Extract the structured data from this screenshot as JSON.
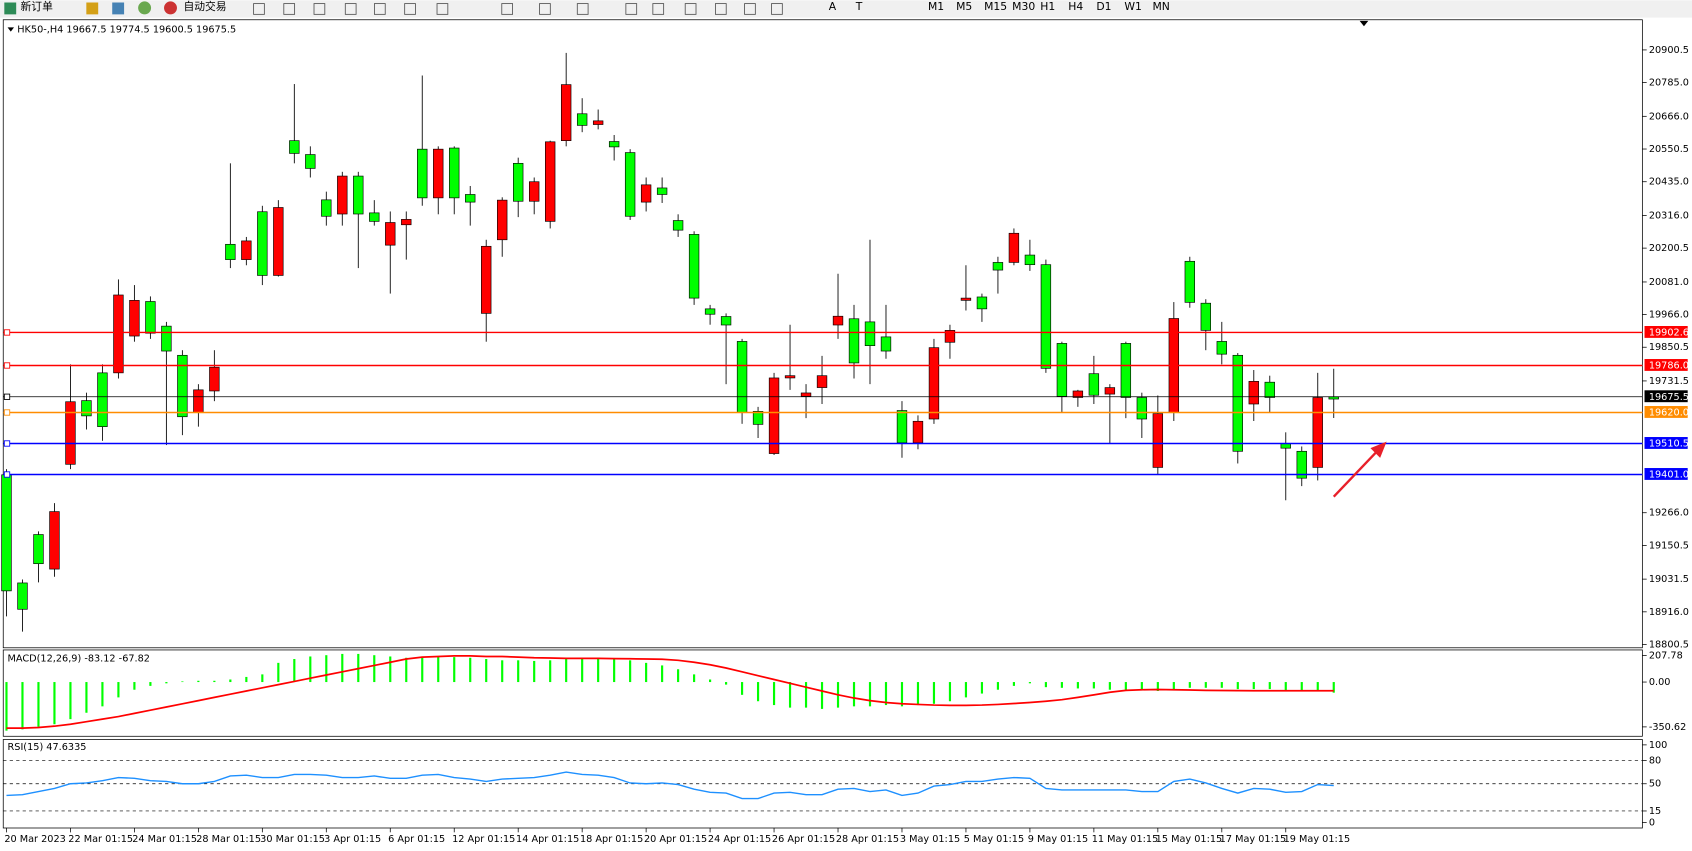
{
  "toolbar": {
    "buttons": [
      "新订单",
      "自动交易"
    ],
    "timeframes": [
      "M1",
      "M5",
      "M15",
      "M30",
      "H1",
      "H4",
      "D1",
      "W1",
      "MN"
    ],
    "tools": [
      "A",
      "T"
    ]
  },
  "chart_data": [
    {
      "type": "candlestick",
      "title": "HK50-,H4  19667.5 19774.5 19600.5 19675.5",
      "categories": [
        "20 Mar 2023",
        null,
        null,
        null,
        "22 Mar 01:15",
        null,
        null,
        null,
        "24 Mar 01:15",
        null,
        null,
        null,
        "28 Mar 01:15",
        null,
        null,
        null,
        "30 Mar 01:15",
        null,
        null,
        null,
        "3 Apr 01:15",
        null,
        null,
        null,
        "6 Apr 01:15",
        null,
        null,
        null,
        "12 Apr 01:15",
        null,
        null,
        null,
        "14 Apr 01:15",
        null,
        null,
        null,
        "18 Apr 01:15",
        null,
        null,
        null,
        "20 Apr 01:15",
        null,
        null,
        null,
        "24 Apr 01:15",
        null,
        null,
        null,
        "26 Apr 01:15",
        null,
        null,
        null,
        "28 Apr 01:15",
        null,
        null,
        null,
        "3 May 01:15",
        null,
        null,
        null,
        "5 May 01:15",
        null,
        null,
        null,
        "9 May 01:15",
        null,
        null,
        null,
        "11 May 01:15",
        null,
        null,
        null,
        "15 May 01:15",
        null,
        null,
        null,
        "17 May 01:15",
        null,
        null,
        null,
        "19 May 01:15",
        null,
        null,
        null
      ],
      "open": [
        18990,
        18925,
        19086,
        19270,
        19658,
        19608,
        19570,
        20035,
        20016,
        19900,
        19837,
        19605,
        19700,
        19780,
        20160,
        20226,
        20104,
        20344,
        20535,
        20482,
        20313,
        20455,
        20321,
        20295,
        20291,
        20302,
        20378,
        20550,
        20378,
        20363,
        20207,
        20370,
        20366,
        20435,
        20576,
        20778,
        20634,
        20650,
        20558,
        20313,
        20424,
        20390,
        20264,
        20024,
        19967,
        19929,
        19620,
        19578,
        19742,
        19750,
        19689,
        19750,
        19960,
        19795,
        19856,
        19837,
        19513,
        19589,
        19849,
        19910,
        20024,
        19986,
        20123,
        20253,
        20142,
        19776,
        19677,
        19696,
        19681,
        19708,
        19673,
        19597,
        19616,
        19952,
        20009,
        19910,
        19826,
        19483,
        19730,
        19673,
        19494,
        19388,
        19673,
        19667.5
      ],
      "high": [
        19420,
        19030,
        19200,
        19300,
        19790,
        19690,
        19790,
        20090,
        20070,
        20030,
        19940,
        19840,
        19720,
        19840,
        20500,
        20240,
        20350,
        20370,
        20780,
        20560,
        20400,
        20470,
        20470,
        20370,
        20330,
        20330,
        20810,
        20560,
        20560,
        20420,
        20230,
        20380,
        20520,
        20450,
        20580,
        20890,
        20730,
        20690,
        20600,
        20550,
        20450,
        20450,
        20320,
        20260,
        20000,
        19970,
        19880,
        19640,
        19760,
        19930,
        19720,
        19820,
        20110,
        20000,
        20230,
        20000,
        19660,
        19610,
        19880,
        19930,
        20140,
        20040,
        20170,
        20270,
        20230,
        20160,
        19870,
        19700,
        19820,
        19720,
        19870,
        19690,
        19680,
        20010,
        20170,
        20020,
        19940,
        19830,
        19770,
        19750,
        19550,
        19500,
        19760,
        19774.5
      ],
      "low": [
        18900,
        18846,
        19020,
        19040,
        19420,
        19560,
        19520,
        19740,
        19870,
        19880,
        19505,
        19540,
        19570,
        19660,
        20130,
        20140,
        20070,
        20100,
        20500,
        20450,
        20280,
        20280,
        20130,
        20280,
        20040,
        20160,
        20350,
        20320,
        20320,
        20280,
        19870,
        20170,
        20310,
        20320,
        20270,
        20560,
        20610,
        20620,
        20510,
        20300,
        20330,
        20360,
        20240,
        20000,
        19930,
        19720,
        19580,
        19530,
        19470,
        19700,
        19600,
        19650,
        19880,
        19740,
        19720,
        19810,
        19460,
        19490,
        19580,
        19810,
        19980,
        19940,
        20040,
        20140,
        20120,
        19760,
        19620,
        19640,
        19650,
        19510,
        19600,
        19530,
        19400,
        19590,
        19990,
        19840,
        19790,
        19440,
        19590,
        19620,
        19310,
        19360,
        19380,
        19600.5
      ],
      "close": [
        19400,
        19018,
        19189,
        19067,
        19437,
        19662,
        19760,
        19760,
        19890,
        20012,
        19925,
        19822,
        19620,
        19696,
        20214,
        20160,
        20329,
        20104,
        20580,
        20531,
        20371,
        20321,
        20455,
        20325,
        20211,
        20283,
        20550,
        20378,
        20554,
        20390,
        19970,
        20230,
        20500,
        20366,
        20295,
        20580,
        20675,
        20637,
        20577,
        20538,
        20363,
        20413,
        20298,
        20249,
        19986,
        19959,
        19871,
        19624,
        19475,
        19742,
        19677,
        19708,
        19929,
        19951,
        19940,
        19887,
        19627,
        19513,
        19597,
        19868,
        20016,
        20028,
        20150,
        20150,
        20176,
        20142,
        19864,
        19673,
        19757,
        19685,
        19864,
        19673,
        19426,
        19620,
        20154,
        20006,
        19871,
        19822,
        19650,
        19727,
        19510,
        19483,
        19426,
        19675.5
      ],
      "up_color": "#00ff00",
      "down_color": "#ff0000",
      "ylim": [
        18789,
        21007
      ],
      "yticks": [
        20900.5,
        {
          "value": 20785,
          "label": "20785.0"
        },
        {
          "value": 20666,
          "label": "20666.0"
        },
        20550.5,
        {
          "value": 20435,
          "label": "20435.0"
        },
        {
          "value": 20316,
          "label": "20316.0"
        },
        20200.5,
        {
          "value": 20081,
          "label": "20081.0"
        },
        {
          "value": 19966,
          "label": "19966.0"
        },
        19850.5,
        19731.5,
        {
          "value": 19266,
          "label": "19266.0"
        },
        19150.5,
        19031.5,
        {
          "value": 18916,
          "label": "18916.0"
        },
        18800.5
      ],
      "hlines": [
        {
          "value": 19902.6,
          "color": "#ff0000"
        },
        {
          "value": 19786,
          "label": "19786.0",
          "color": "#ff0000"
        },
        {
          "value": 19675.5,
          "color": "#000000"
        },
        {
          "value": 19620,
          "label": "19620.0",
          "color": "#ff8c00"
        },
        {
          "value": 19510.5,
          "color": "#0000ff"
        },
        {
          "value": 19401,
          "label": "19401.0",
          "color": "#0000ff"
        }
      ]
    },
    {
      "type": "bar",
      "title": "MACD(12,26,9) -83.12 -67.82",
      "ylim": [
        -424,
        251
      ],
      "yticks": [
        207.78,
        {
          "value": 0,
          "label": "0.00"
        },
        -350.62
      ],
      "series": [
        {
          "type": "bar",
          "color": "#00ff00",
          "values": [
            -380,
            -370,
            -350,
            -330,
            -290,
            -240,
            -190,
            -120,
            -60,
            -30,
            -10,
            5,
            10,
            10,
            20,
            40,
            60,
            150,
            180,
            200,
            210,
            220,
            220,
            210,
            200,
            190,
            200,
            200,
            195,
            190,
            180,
            170,
            170,
            165,
            170,
            180,
            190,
            185,
            180,
            170,
            150,
            130,
            100,
            60,
            20,
            -20,
            -100,
            -150,
            -180,
            -200,
            -200,
            -210,
            -200,
            -190,
            -190,
            -180,
            -190,
            -180,
            -170,
            -150,
            -120,
            -90,
            -60,
            -30,
            -10,
            -40,
            -45,
            -50,
            -50,
            -60,
            -60,
            -65,
            -70,
            -60,
            -45,
            -45,
            -45,
            -55,
            -55,
            -55,
            -65,
            -70,
            -70,
            -83.12
          ]
        },
        {
          "type": "line",
          "color": "#ff0000",
          "values": [
            -360,
            -360,
            -355,
            -345,
            -330,
            -310,
            -290,
            -270,
            -245,
            -220,
            -195,
            -170,
            -145,
            -120,
            -95,
            -70,
            -45,
            -20,
            5,
            30,
            55,
            80,
            105,
            130,
            155,
            180,
            195,
            200,
            205,
            205,
            200,
            200,
            195,
            190,
            188,
            185,
            185,
            185,
            183,
            182,
            180,
            178,
            170,
            155,
            135,
            110,
            80,
            50,
            20,
            -10,
            -40,
            -70,
            -100,
            -125,
            -145,
            -160,
            -170,
            -175,
            -180,
            -182,
            -182,
            -180,
            -175,
            -168,
            -160,
            -150,
            -138,
            -120,
            -100,
            -80,
            -65,
            -60,
            -58,
            -60,
            -62,
            -65,
            -66,
            -67,
            -68,
            -68,
            -68,
            -68,
            -68,
            -67.82
          ]
        }
      ]
    },
    {
      "type": "line",
      "title": "RSI(15) 47.6335",
      "ylim": [
        -6.9,
        106.9
      ],
      "yticks": [
        100,
        80,
        50,
        15,
        0
      ],
      "levels": [
        80,
        50,
        15
      ],
      "color": "#1e90ff",
      "values": [
        35,
        36,
        40,
        44,
        50,
        51,
        54,
        58,
        57,
        54,
        53,
        50,
        50,
        53,
        60,
        61,
        58,
        58,
        62,
        62,
        61,
        58,
        58,
        60,
        57,
        57,
        61,
        62,
        58,
        56,
        53,
        56,
        57,
        58,
        61,
        65,
        62,
        61,
        58,
        51,
        50,
        51,
        49,
        43,
        39,
        38,
        31,
        31,
        38,
        39,
        36,
        36,
        43,
        44,
        40,
        42,
        35,
        38,
        47,
        49,
        53,
        53,
        56,
        58,
        57,
        44,
        42,
        42,
        42,
        42,
        42,
        40,
        40,
        53,
        56,
        51,
        44,
        38,
        44,
        43,
        39,
        40,
        49,
        47.6335
      ]
    }
  ]
}
